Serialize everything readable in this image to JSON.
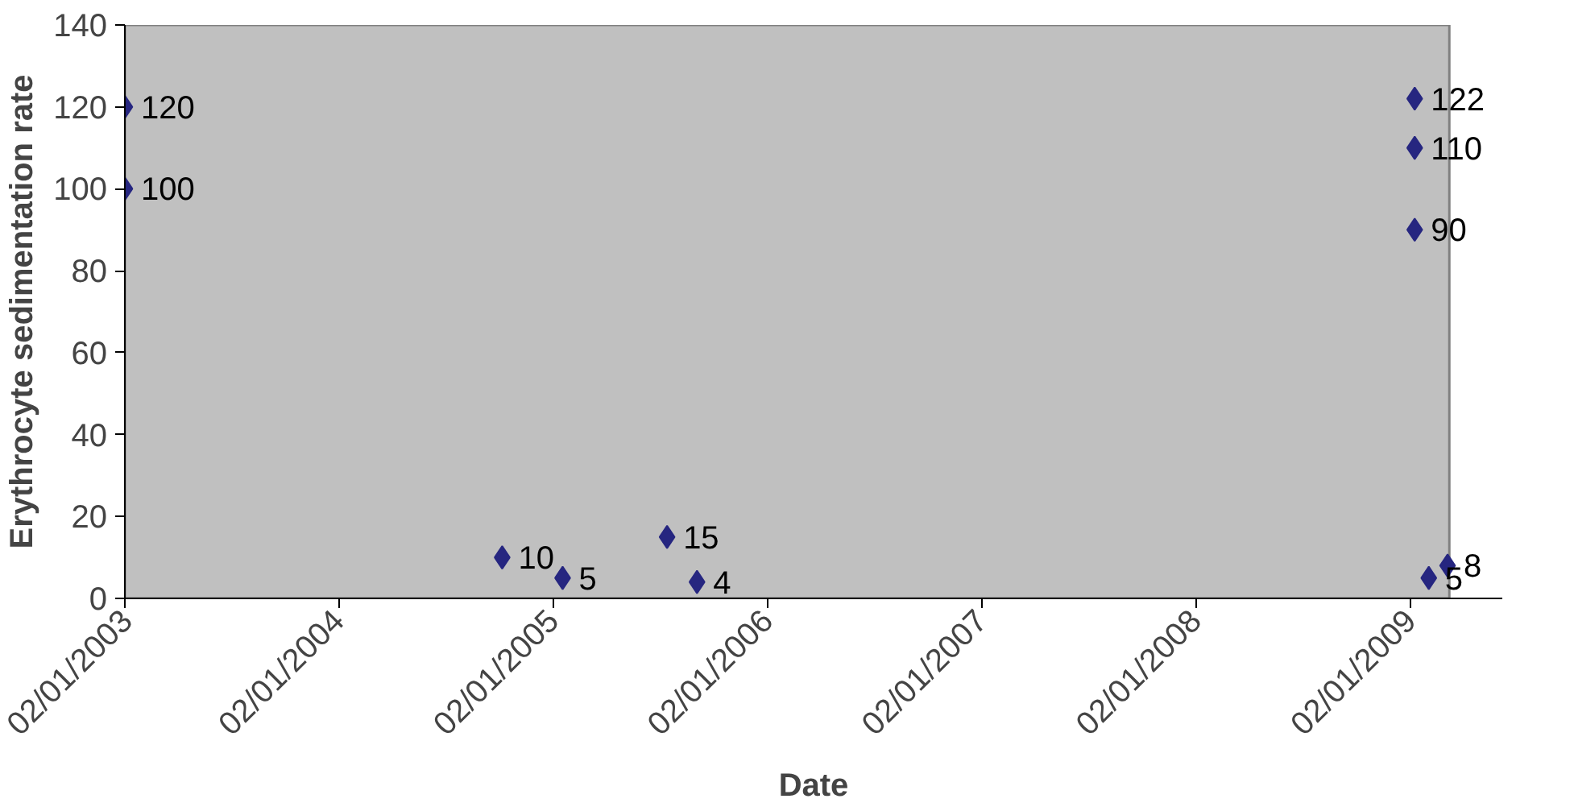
{
  "chart_data": {
    "type": "scatter",
    "xlabel": "Date",
    "ylabel": "Erythrocyte sedimentation rate",
    "x": [
      "2003-01-02",
      "2003-01-02",
      "2004-10-06",
      "2005-01-17",
      "2005-07-14",
      "2005-09-03",
      "2009-01-08",
      "2009-01-08",
      "2009-01-08",
      "2009-02-01",
      "2009-03-05"
    ],
    "series": [
      {
        "color": "#262680",
        "values": [
          120,
          100,
          10,
          5,
          15,
          4,
          122,
          110,
          90,
          5,
          8
        ]
      }
    ],
    "data_labels": true,
    "marker": "diamond",
    "grid": false,
    "xlim": [
      "2003-01-02",
      "2009-03-08"
    ],
    "xticks": [
      {
        "value": "2003-01-02",
        "label": "02/01/2003"
      },
      {
        "value": "2004-01-02",
        "label": "02/01/2004"
      },
      {
        "value": "2005-01-02",
        "label": "02/01/2005"
      },
      {
        "value": "2006-01-02",
        "label": "02/01/2006"
      },
      {
        "value": "2007-01-02",
        "label": "02/01/2007"
      },
      {
        "value": "2008-01-02",
        "label": "02/01/2008"
      },
      {
        "value": "2009-01-02",
        "label": "02/01/2009"
      }
    ],
    "ylim": [
      0,
      140
    ],
    "yticks": [
      0,
      20,
      40,
      60,
      80,
      100,
      120,
      140
    ]
  }
}
